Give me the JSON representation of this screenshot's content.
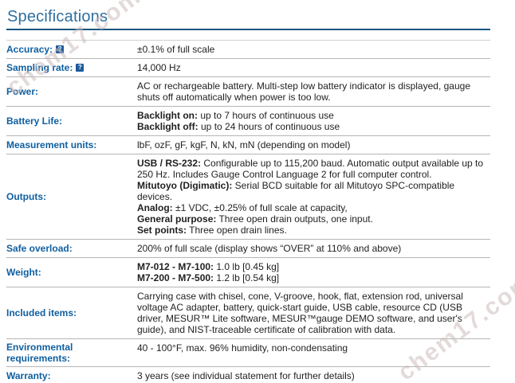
{
  "title": "Specifications",
  "watermark_text": "chem17.com",
  "help_glyph": "?",
  "colors": {
    "label_blue": "#0f5fa0",
    "title_blue": "#2f6f9f",
    "title_underline": "#1a567f",
    "help_icon_bg": "#1d5a9b",
    "watermark": "#cdbcbc"
  },
  "table": {
    "rows": [
      {
        "label": "Accuracy:",
        "help": true,
        "value": [
          [
            {
              "t": "±0.1% of full scale"
            }
          ]
        ]
      },
      {
        "label": "Sampling rate:",
        "help": true,
        "value": [
          [
            {
              "t": "14,000 Hz"
            }
          ]
        ]
      },
      {
        "label": "Power:",
        "value": [
          [
            {
              "t": "AC or rechargeable battery. Multi-step low battery indicator is displayed, gauge shuts off automatically when power is too low."
            }
          ]
        ]
      },
      {
        "label": "Battery Life:",
        "value": [
          [
            {
              "b": true,
              "t": "Backlight on:"
            },
            {
              "t": " up to 7 hours of continuous use"
            }
          ],
          [
            {
              "b": true,
              "t": "Backlight off:"
            },
            {
              "t": " up to 24 hours of continuous use"
            }
          ]
        ]
      },
      {
        "label": "Measurement units:",
        "value": [
          [
            {
              "t": "lbF, ozF, gF, kgF, N, kN, mN (depending on model)"
            }
          ]
        ]
      },
      {
        "label": "Outputs:",
        "value": [
          [
            {
              "b": true,
              "t": "USB / RS-232:"
            },
            {
              "t": " Configurable up to 115,200 baud. Automatic output available up to 250 Hz. Includes Gauge Control Language 2 for full computer control."
            }
          ],
          [
            {
              "b": true,
              "t": "Mitutoyo (Digimatic):"
            },
            {
              "t": " Serial BCD suitable for all Mitutoyo SPC-compatible devices."
            }
          ],
          [
            {
              "b": true,
              "t": "Analog:"
            },
            {
              "t": " ±1 VDC, ±0.25% of full scale at capacity,"
            }
          ],
          [
            {
              "b": true,
              "t": "General purpose:"
            },
            {
              "t": " Three open drain outputs, one input."
            }
          ],
          [
            {
              "b": true,
              "t": "Set points:"
            },
            {
              "t": " Three open drain lines."
            }
          ]
        ]
      },
      {
        "label": "Safe overload:",
        "value": [
          [
            {
              "t": "200% of full scale (display shows “OVER” at 110% and above)"
            }
          ]
        ]
      },
      {
        "label": "Weight:",
        "value": [
          [
            {
              "b": true,
              "t": "M7-012 - M7-100:"
            },
            {
              "t": " 1.0 lb [0.45 kg]"
            }
          ],
          [
            {
              "b": true,
              "t": "M7-200 - M7-500:"
            },
            {
              "t": " 1.2 lb [0.54 kg]"
            }
          ]
        ]
      },
      {
        "label": "Included items:",
        "value": [
          [
            {
              "t": "Carrying case with chisel, cone, V-groove, hook, flat, extension rod, universal voltage AC adapter, battery, quick-start guide, USB cable, resource CD (USB driver, MESUR™ Lite software, MESUR™gauge DEMO software, and user's guide), and NIST-traceable certificate of calibration with data."
            }
          ]
        ]
      },
      {
        "label": "Environmental requirements:",
        "value": [
          [
            {
              "t": "40 - 100°F, max. 96% humidity, non-condensating"
            }
          ]
        ]
      },
      {
        "label": "Warranty:",
        "value": [
          [
            {
              "t": "3 years (see individual statement for further details)"
            }
          ]
        ]
      }
    ]
  }
}
